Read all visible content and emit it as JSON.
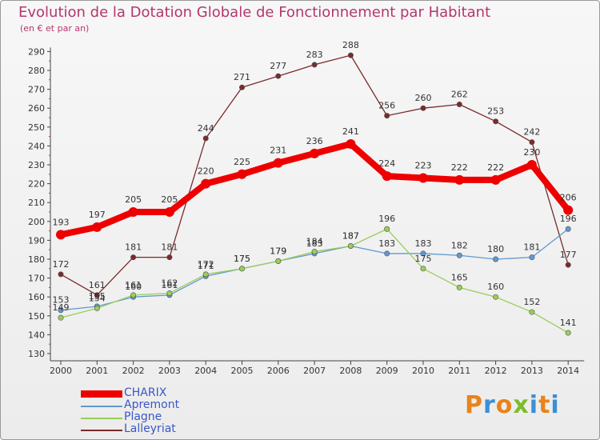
{
  "title": "Evolution de la Dotation Globale de Fonctionnement par Habitant",
  "subtitle": "(en € et par an)",
  "logo": {
    "text": "Proxiti",
    "colors": [
      "#e8841a",
      "#3b8fd6",
      "#e8841a",
      "#7bbd2c",
      "#3b8fd6",
      "#e8841a",
      "#3b8fd6"
    ]
  },
  "chart_data": {
    "type": "line",
    "title": "Evolution de la Dotation Globale de Fonctionnement par Habitant",
    "subtitle": "(en € et par an)",
    "xlabel": "",
    "ylabel": "",
    "x": [
      "2000",
      "2001",
      "2002",
      "2003",
      "2004",
      "2005",
      "2006",
      "2007",
      "2008",
      "2009",
      "2010",
      "2011",
      "2012",
      "2013",
      "2014"
    ],
    "ylim": [
      130,
      290
    ],
    "yticks": [
      130,
      140,
      150,
      160,
      170,
      180,
      190,
      200,
      210,
      220,
      230,
      240,
      250,
      260,
      270,
      280,
      290
    ],
    "grid": "none",
    "legend_position": "bottom-left",
    "series": [
      {
        "name": "CHARIX",
        "color": "#ee0000",
        "values": [
          193,
          197,
          205,
          205,
          220,
          225,
          231,
          236,
          241,
          224,
          223,
          222,
          222,
          230,
          206
        ]
      },
      {
        "name": "Apremont",
        "color": "#5f99d0",
        "values": [
          153,
          155,
          160,
          161,
          171,
          175,
          179,
          183,
          187,
          183,
          183,
          182,
          180,
          181,
          196
        ]
      },
      {
        "name": "Plagne",
        "color": "#9acd5a",
        "values": [
          149,
          154,
          161,
          162,
          172,
          175,
          179,
          184,
          187,
          196,
          175,
          165,
          160,
          152,
          141
        ]
      },
      {
        "name": "Lalleyriat",
        "color": "#7a2b2b",
        "values": [
          172,
          161,
          181,
          181,
          244,
          271,
          277,
          283,
          288,
          256,
          260,
          262,
          253,
          242,
          177
        ]
      }
    ]
  }
}
